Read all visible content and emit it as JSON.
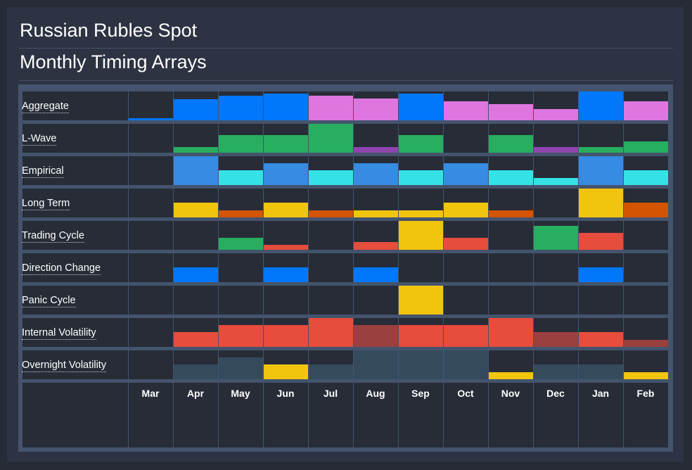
{
  "header": {
    "title": "Russian Rubles Spot",
    "subtitle": "Monthly Timing Arrays"
  },
  "colors": {
    "page_bg": "#262b36",
    "panel_bg": "#2d3342",
    "cell_bg": "#272c37",
    "grid": "#44546d",
    "blue": "#0177fc",
    "pink": "#df76e0",
    "green": "#27ae5f",
    "purple": "#8e44ad",
    "light_blue": "#368be3",
    "cyan": "#34e2e6",
    "yellow": "#f1c50e",
    "orange": "#d35402",
    "red": "#e74c3c",
    "dark_red": "#9c403f",
    "slate": "#364a5d"
  },
  "chart_data": {
    "type": "heatmap",
    "title": "Monthly Timing Arrays",
    "months": [
      "Mar",
      "Apr",
      "May",
      "Jun",
      "Jul",
      "Aug",
      "Sep",
      "Oct",
      "Nov",
      "Dec",
      "Jan",
      "Feb"
    ],
    "value_scale": "relative bar height within each row, 0 to 1",
    "rows": [
      {
        "name": "Aggregate",
        "values": [
          0.08,
          0.73,
          0.85,
          0.93,
          0.85,
          0.75,
          0.93,
          0.65,
          0.55,
          0.38,
          1.0,
          0.65
        ],
        "colors": [
          "blue",
          "blue",
          "blue",
          "blue",
          "pink",
          "pink",
          "blue",
          "pink",
          "pink",
          "pink",
          "blue",
          "pink"
        ]
      },
      {
        "name": "L-Wave",
        "values": [
          0,
          0.2,
          0.6,
          0.6,
          1.0,
          0.2,
          0.6,
          0,
          0.6,
          0.2,
          0.2,
          0.4
        ],
        "colors": [
          "green",
          "green",
          "green",
          "green",
          "green",
          "purple",
          "green",
          "green",
          "green",
          "purple",
          "green",
          "green"
        ]
      },
      {
        "name": "Empirical",
        "values": [
          0,
          1.0,
          0.5,
          0.75,
          0.5,
          0.75,
          0.5,
          0.75,
          0.5,
          0.25,
          1.0,
          0.5
        ],
        "colors": [
          "cyan",
          "light_blue",
          "cyan",
          "light_blue",
          "cyan",
          "light_blue",
          "cyan",
          "light_blue",
          "cyan",
          "cyan",
          "light_blue",
          "cyan"
        ]
      },
      {
        "name": "Long Term",
        "values": [
          0,
          0.5,
          0.25,
          0.5,
          0.25,
          0.25,
          0.25,
          0.5,
          0.25,
          0,
          1.0,
          0.5
        ],
        "colors": [
          "yellow",
          "yellow",
          "orange",
          "yellow",
          "orange",
          "yellow",
          "yellow",
          "yellow",
          "orange",
          "yellow",
          "yellow",
          "orange"
        ]
      },
      {
        "name": "Trading Cycle",
        "values": [
          0,
          0,
          0.42,
          0.17,
          0,
          0.28,
          1.0,
          0.42,
          0,
          0.83,
          0.58,
          0
        ],
        "colors": [
          "green",
          "green",
          "green",
          "red",
          "red",
          "red",
          "yellow",
          "red",
          "red",
          "green",
          "red",
          "red"
        ]
      },
      {
        "name": "Direction Change",
        "values": [
          0,
          0.5,
          0,
          0.5,
          0,
          0.5,
          0,
          0,
          0,
          0,
          0.5,
          0
        ],
        "colors": [
          "blue",
          "blue",
          "blue",
          "blue",
          "blue",
          "blue",
          "blue",
          "blue",
          "blue",
          "blue",
          "blue",
          "blue"
        ]
      },
      {
        "name": "Panic Cycle",
        "values": [
          0,
          0,
          0,
          0,
          0,
          0,
          1.0,
          0,
          0,
          0,
          0,
          0
        ],
        "colors": [
          "yellow",
          "yellow",
          "yellow",
          "yellow",
          "yellow",
          "yellow",
          "yellow",
          "yellow",
          "yellow",
          "yellow",
          "yellow",
          "yellow"
        ]
      },
      {
        "name": "Internal Volatility",
        "values": [
          0,
          0.5,
          0.75,
          0.75,
          1.0,
          0.75,
          0.75,
          0.75,
          1.0,
          0.5,
          0.5,
          0.25
        ],
        "colors": [
          "red",
          "red",
          "red",
          "red",
          "red",
          "dark_red",
          "red",
          "red",
          "red",
          "dark_red",
          "red",
          "dark_red"
        ]
      },
      {
        "name": "Overnight Volatility",
        "values": [
          0,
          0.5,
          0.75,
          0.5,
          0.5,
          1.0,
          1.0,
          1.0,
          0.25,
          0.5,
          0.5,
          0.25
        ],
        "colors": [
          "slate",
          "slate",
          "slate",
          "yellow",
          "slate",
          "slate",
          "slate",
          "slate",
          "yellow",
          "slate",
          "slate",
          "yellow"
        ]
      }
    ]
  }
}
